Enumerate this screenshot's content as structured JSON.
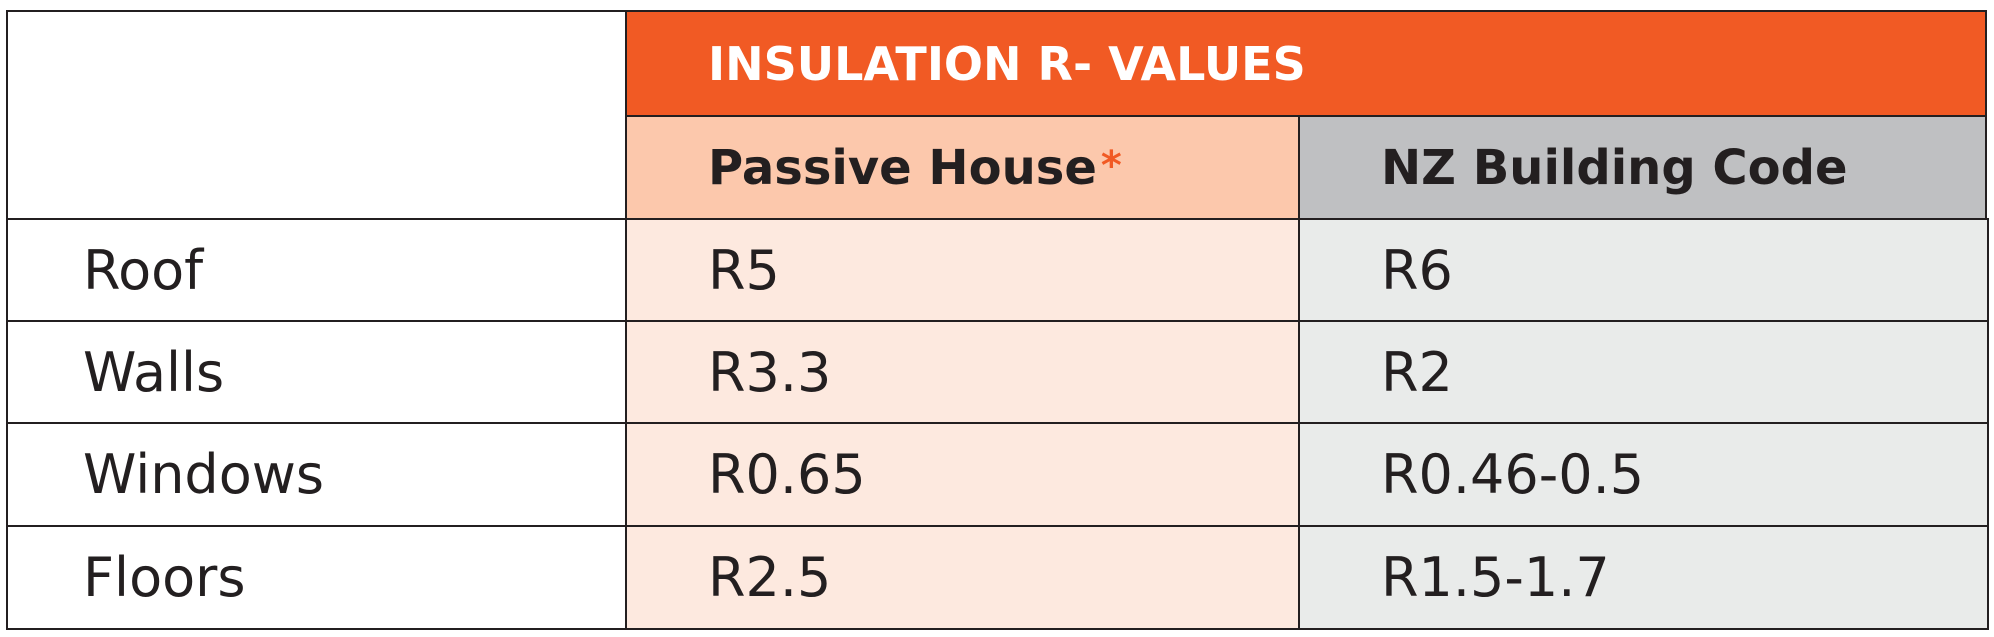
{
  "header": {
    "title": "INSULATION  R- VALUES",
    "note_mark": "*"
  },
  "table": {
    "columns": [
      "Passive House",
      "NZ Building Code"
    ],
    "rows": [
      [
        "Roof",
        "R5",
        "R6"
      ],
      [
        "Walls",
        "R3.3",
        "R2"
      ],
      [
        "Windows",
        "R0.65",
        "R0.46-0.5"
      ],
      [
        "Floors",
        "R2.5",
        "R1.5-1.7"
      ]
    ]
  }
}
